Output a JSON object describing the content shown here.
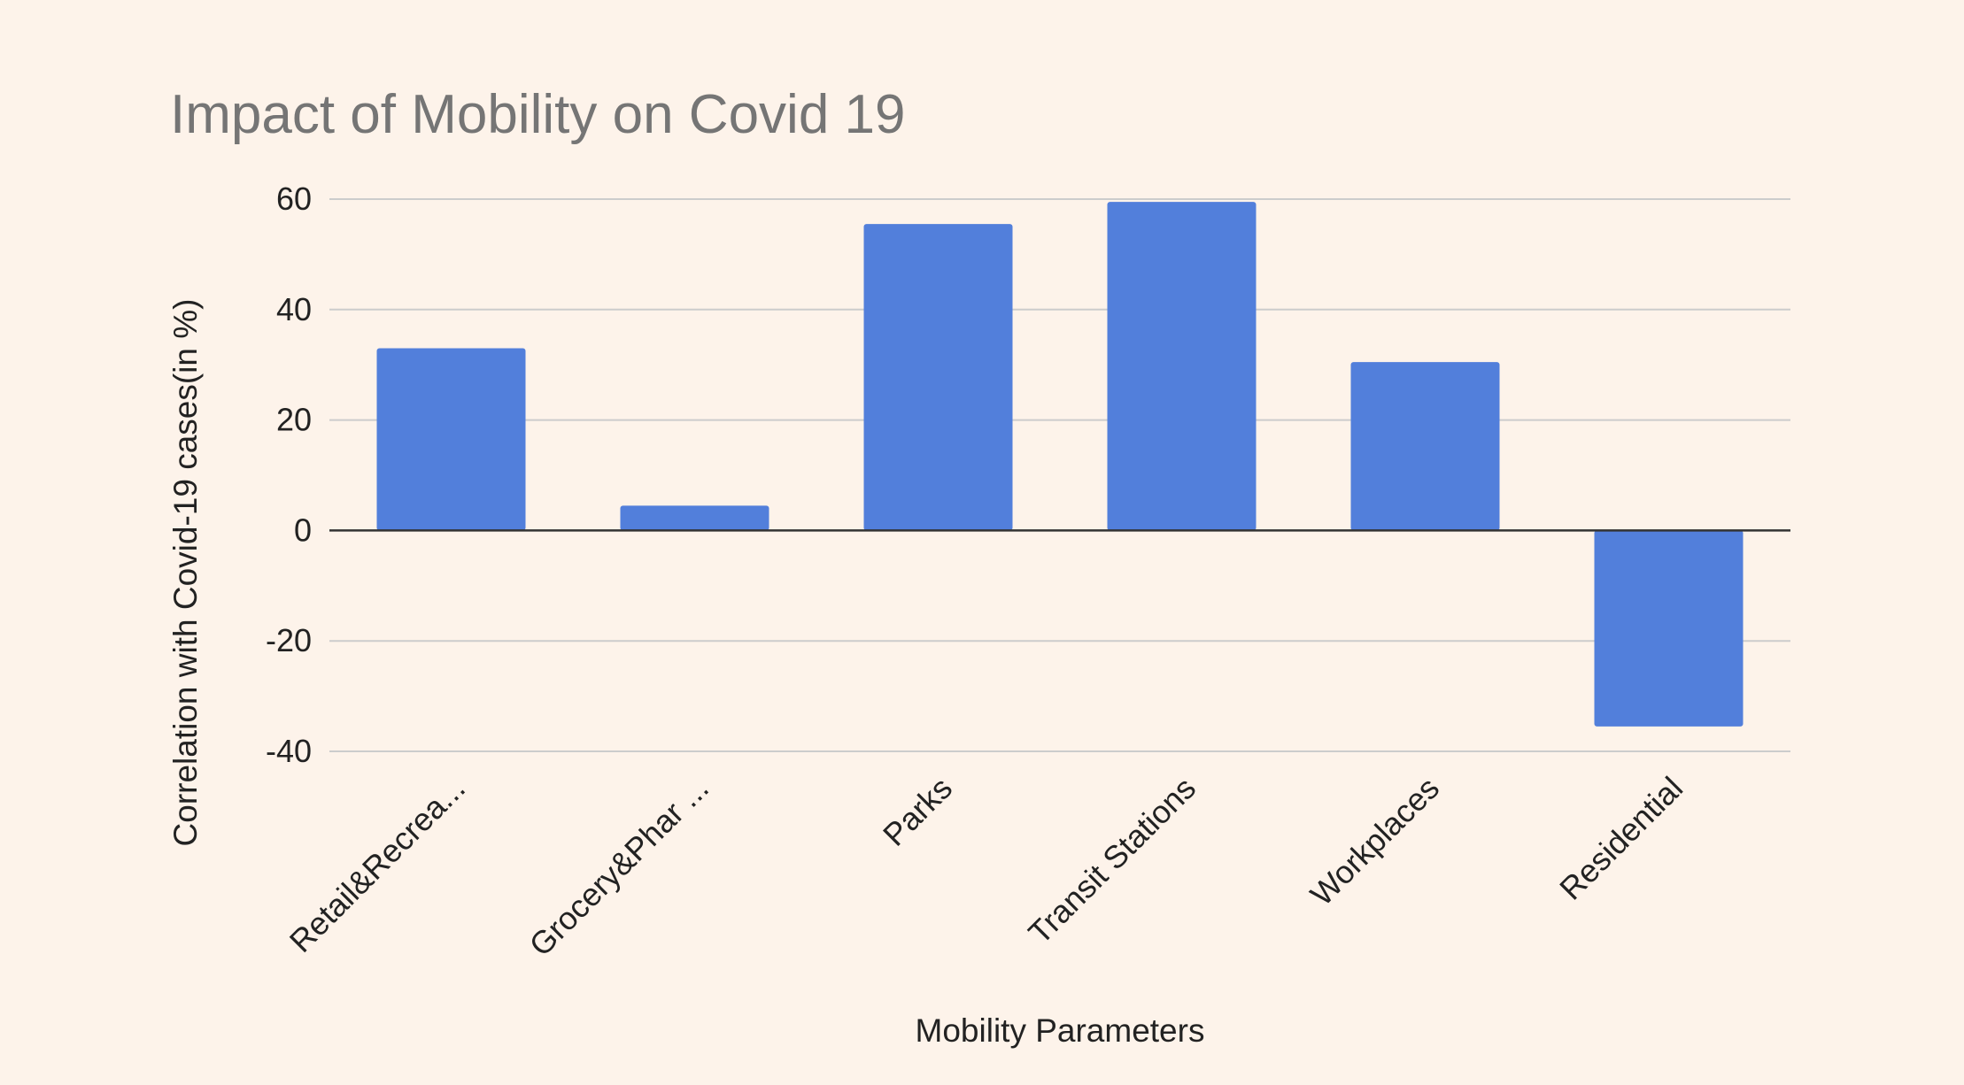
{
  "chart_data": {
    "type": "bar",
    "title": "Impact of Mobility on Covid 19",
    "xlabel": "Mobility Parameters",
    "ylabel": "Correlation with Covid-19 cases(in %)",
    "categories": [
      "Retail&Recrea...",
      "Grocery&Phar ...",
      "Parks",
      "Transit Stations",
      "Workplaces",
      "Residential"
    ],
    "values": [
      33,
      4.5,
      55.5,
      59.5,
      30.5,
      -35.5
    ],
    "ylim": [
      -40,
      60
    ],
    "yticks": [
      "60",
      "40",
      "20",
      "0",
      "-20",
      "-40"
    ],
    "grid": true,
    "legend": "none",
    "colors": {
      "bar": "#527fdb",
      "background": "#fdf3ea",
      "grid": "#cccccc",
      "zero_line": "#333333"
    }
  }
}
